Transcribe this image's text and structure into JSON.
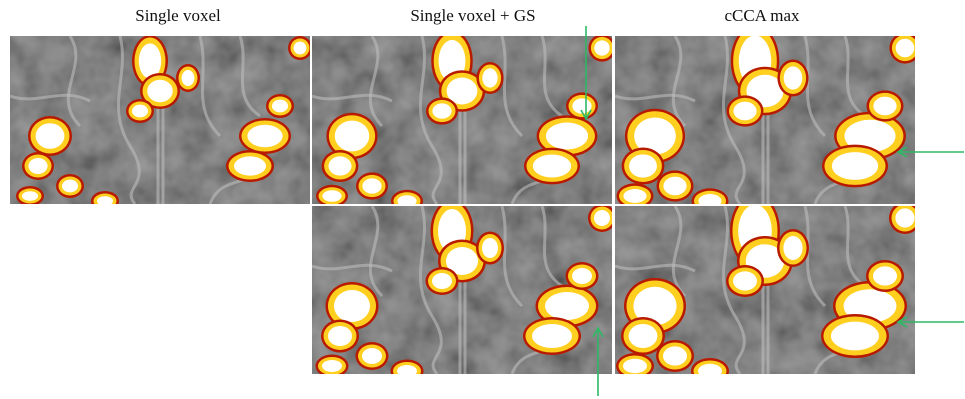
{
  "columns": {
    "single_voxel": "Single voxel",
    "single_voxel_gs": "Single voxel + GS",
    "ccca_max": "cCCA max"
  },
  "colors": {
    "arrow": "#2eb865",
    "activation_hot": "#ffffff",
    "activation_warm": "#ffcf20",
    "activation_edge": "#b81a00",
    "background_anatomy": "#6f6f6f"
  },
  "panels": [
    {
      "row": 1,
      "column": "Single voxel",
      "arrow": "none"
    },
    {
      "row": 1,
      "column": "Single voxel + GS",
      "arrow": "down"
    },
    {
      "row": 1,
      "column": "cCCA max",
      "arrow": "left"
    },
    {
      "row": 2,
      "column": "Single voxel + GS",
      "arrow": "up"
    },
    {
      "row": 2,
      "column": "cCCA max",
      "arrow": "left"
    }
  ]
}
